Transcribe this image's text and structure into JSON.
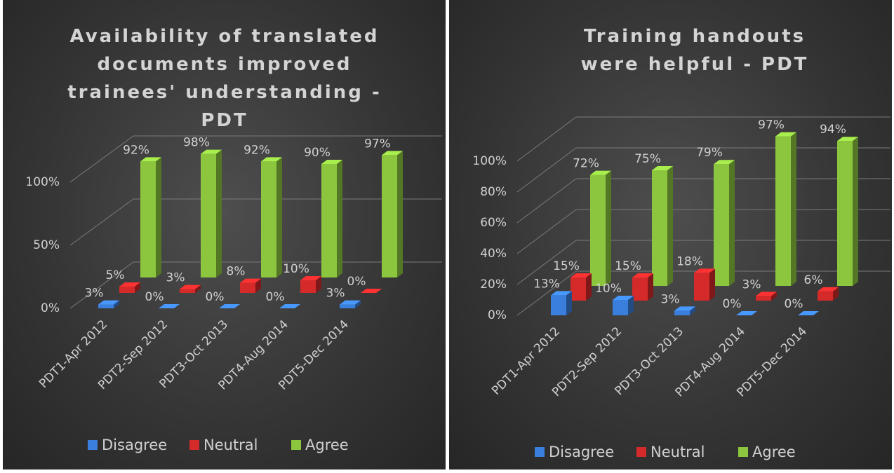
{
  "chart_data": [
    {
      "type": "bar3d",
      "title": "Availability of translated documents improved trainees' understanding - PDT",
      "categories": [
        "PDT1-Apr 2012",
        "PDT2-Sep 2012",
        "PDT3-Oct 2013",
        "PDT4-Aug 2014",
        "PDT5-Dec 2014"
      ],
      "series": [
        {
          "name": "Disagree",
          "color": "#3b7fdc",
          "values": [
            3,
            0,
            0,
            0,
            3
          ],
          "value_labels": [
            "3%",
            "0%",
            "0%",
            "0%",
            "3%"
          ]
        },
        {
          "name": "Neutral",
          "color": "#d42a2a",
          "values": [
            5,
            3,
            8,
            10,
            0
          ],
          "value_labels": [
            "5%",
            "3%",
            "8%",
            "10%",
            "0%"
          ]
        },
        {
          "name": "Agree",
          "color": "#8cc63f",
          "values": [
            92,
            98,
            92,
            90,
            97
          ],
          "value_labels": [
            "92%",
            "98%",
            "92%",
            "90%",
            "97%"
          ]
        }
      ],
      "ylim": [
        0,
        120
      ],
      "yticks": [
        {
          "value": 0,
          "label": "0%"
        },
        {
          "value": 50,
          "label": "50%"
        },
        {
          "value": 100,
          "label": "100%"
        }
      ],
      "grid": true,
      "legend": "bottom"
    },
    {
      "type": "bar3d",
      "title": "Training handouts were helpful - PDT",
      "categories": [
        "PDT1-Apr 2012",
        "PDT2-Sep 2012",
        "PDT3-Oct 2013",
        "PDT4-Aug 2014",
        "PDT5-Dec 2014"
      ],
      "series": [
        {
          "name": "Disagree",
          "color": "#3b7fdc",
          "values": [
            13,
            10,
            3,
            0,
            0
          ],
          "value_labels": [
            "13%",
            "10%",
            "3%",
            "0%",
            "0%"
          ]
        },
        {
          "name": "Neutral",
          "color": "#d42a2a",
          "values": [
            15,
            15,
            18,
            3,
            6
          ],
          "value_labels": [
            "15%",
            "15%",
            "18%",
            "3%",
            "6%"
          ]
        },
        {
          "name": "Agree",
          "color": "#8cc63f",
          "values": [
            72,
            75,
            79,
            97,
            94
          ],
          "value_labels": [
            "72%",
            "75%",
            "79%",
            "97%",
            "94%"
          ]
        }
      ],
      "ylim": [
        0,
        120
      ],
      "yticks": [
        {
          "value": 0,
          "label": "0%"
        },
        {
          "value": 20,
          "label": "20%"
        },
        {
          "value": 40,
          "label": "40%"
        },
        {
          "value": 60,
          "label": "60%"
        },
        {
          "value": 80,
          "label": "80%"
        },
        {
          "value": 100,
          "label": "100%"
        }
      ],
      "grid": true,
      "legend": "bottom"
    }
  ]
}
